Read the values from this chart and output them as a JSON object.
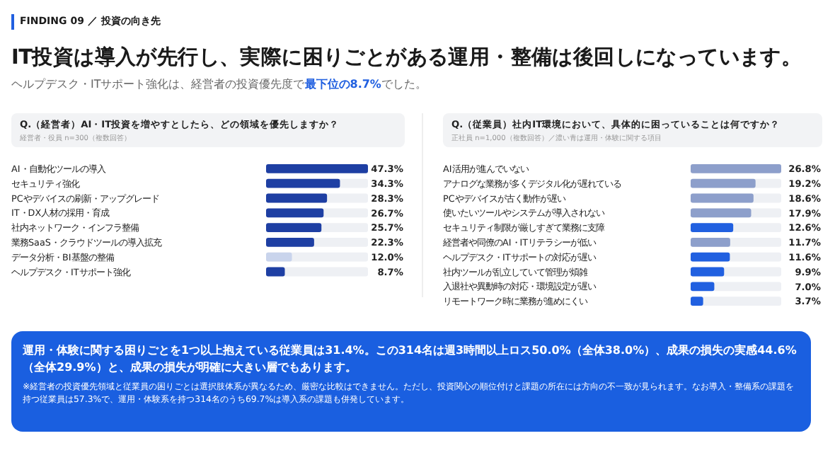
{
  "chart_data": [
    {
      "type": "bar",
      "orientation": "horizontal",
      "title": "Q.（経営者）AI・IT投資を増やすとしたら、どの領域を優先しますか？",
      "subtitle": "経営者・役員 n=300（複数回答）",
      "categories": [
        "AI・自動化ツールの導入",
        "セキュリティ強化",
        "PCやデバイスの刷新・アップグレード",
        "IT・DX人材の採用・育成",
        "社内ネットワーク・インフラ整備",
        "業務SaaS・クラウドツールの導入拡充",
        "データ分析・BI基盤の整備",
        "ヘルプデスク・ITサポート強化"
      ],
      "values": [
        47.3,
        34.3,
        28.3,
        26.7,
        25.7,
        22.3,
        12.0,
        8.7
      ],
      "value_labels": [
        "47.3%",
        "34.3%",
        "28.3%",
        "26.7%",
        "25.7%",
        "22.3%",
        "12.0%",
        "8.7%"
      ],
      "colors": [
        "#1e3fa3",
        "#1e3fa3",
        "#1e3fa3",
        "#1e3fa3",
        "#1e3fa3",
        "#1e3fa3",
        "#c9d4ec",
        "#1e3fa3"
      ],
      "annotations": [
        "FINDING 09 ／ 投資の向き先",
        "IT投資は導入が先行し、実際に困りごとがある運用・整備は後回しになっています。",
        "ヘルプデスク・ITサポート強化は、経営者の投資優先度で",
        "最下位の8.7%",
        "でした。"
      ]
    },
    {
      "type": "bar",
      "orientation": "horizontal",
      "title": "Q.（従業員）社内IT環境において、具体的に困っていることは何ですか？",
      "subtitle": "正社員 n=1,000（複数回答）／濃い青は運用・体験に関する項目",
      "categories": [
        "AI活用が進んでいない",
        "アナログな業務が多くデジタル化が遅れている",
        "PCやデバイスが古く動作が遅い",
        "使いたいツールやシステムが導入されない",
        "セキュリティ制限が厳しすぎて業務に支障",
        "経営者や同僚のAI・ITリテラシーが低い",
        "ヘルプデスク・ITサポートの対応が遅い",
        "社内ツールが乱立していて管理が煩雑",
        "入退社や異動時の対応・環境設定が遅い",
        "リモートワーク時に業務が進めにくい"
      ],
      "values": [
        26.8,
        19.2,
        18.6,
        17.9,
        12.6,
        11.7,
        11.6,
        9.9,
        7.0,
        3.7
      ],
      "value_labels": [
        "26.8%",
        "19.2%",
        "18.6%",
        "17.9%",
        "12.6%",
        "11.7%",
        "11.6%",
        "9.9%",
        "7.0%",
        "3.7%"
      ],
      "colors": [
        "#8d9fcb",
        "#8d9fcb",
        "#8d9fcb",
        "#8d9fcb",
        "#2160e0",
        "#8d9fcb",
        "#2160e0",
        "#2160e0",
        "#2160e0",
        "#2160e0"
      ],
      "annotations": [
        "運用・体験に関する困りごとを1つ以上抱えている従業員は31.4%。この314名は週3時間以上ロス50.0%（全体38.0%）、成果の損失の実感44.6%（全体29.9%）と、成果の損失が明確に大きい層でもあります。",
        "※経営者の投資優先領域と従業員の困りごとは選択肢体系が異なるため、厳密な比較はできません。ただし、投資関心の順位付けと課題の所在には方向の不一致が見られます。なお導入・整備系の課題を持つ従業員は57.3%で、運用・体験系を持つ314名のうち69.7%は導入系の課題も併発しています。"
      ]
    }
  ]
}
